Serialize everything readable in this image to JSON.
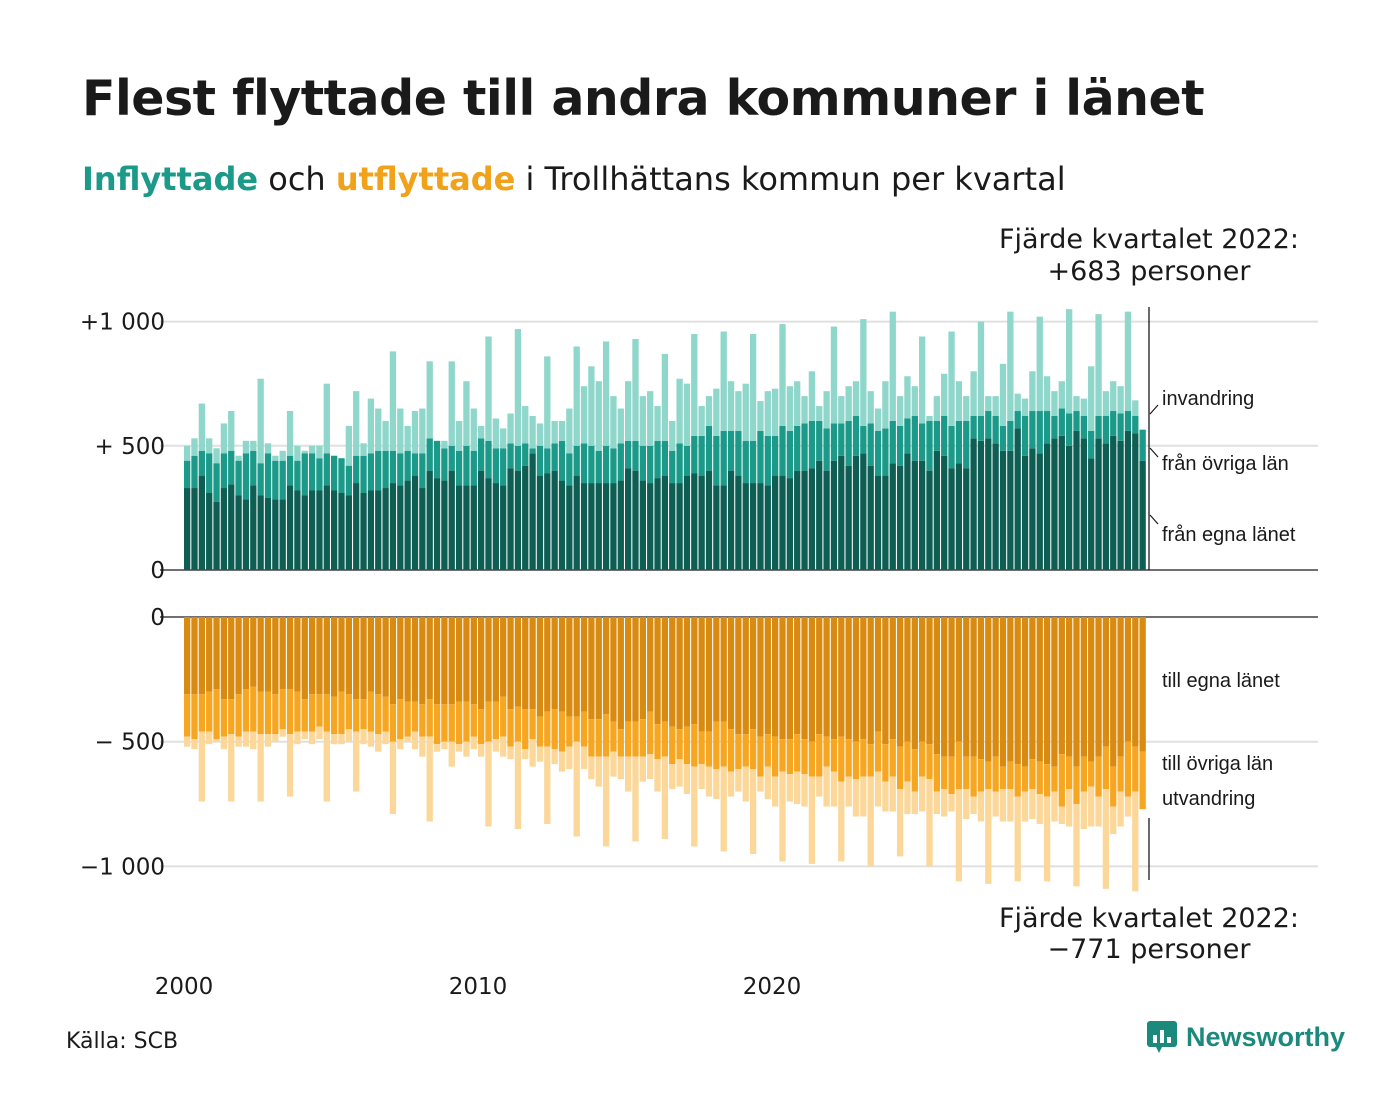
{
  "title": "Flest flyttade till andra kommuner i länet",
  "subtitle": {
    "part_in": "Inflyttade",
    "part_mid": " och ",
    "part_out": "utflyttade",
    "part_end": " i Trollhättans kommun per kvartal"
  },
  "source": "Källa: SCB",
  "brand": "Newsworthy",
  "colors": {
    "in_own": "#0e5e54",
    "in_other": "#1b9a8a",
    "in_immigration": "#8fd6cb",
    "out_own": "#d98a10",
    "out_other": "#f7a622",
    "out_emigration": "#fbd79a",
    "title_in": "#1b9a8a",
    "title_out": "#f0a21a"
  },
  "chart_data": {
    "type": "bar",
    "x_start": "2000 Q1",
    "x_end": "2022 Q4",
    "x_ticks": [
      "2000",
      "2010",
      "2020"
    ],
    "top_ticks": [
      {
        "value": 1000,
        "label": "+1 000"
      },
      {
        "value": 500,
        "label": "+  500"
      },
      {
        "value": 0,
        "label": "0"
      }
    ],
    "bottom_ticks": [
      {
        "value": 0,
        "label": "0"
      },
      {
        "value": -500,
        "label": "−  500"
      },
      {
        "value": -1000,
        "label": "−1 000"
      }
    ],
    "top_ylim": [
      0,
      1050
    ],
    "bottom_ylim": [
      -1000,
      0
    ],
    "series_labels": {
      "in_immigration": "invandring",
      "in_other": "från övriga län",
      "in_own": "från egna länet",
      "out_own": "till egna länet",
      "out_other": "till övriga län",
      "out_emigration": "utvandring"
    },
    "annotation_top": [
      "Fjärde kvartalet 2022:",
      "+683 personer"
    ],
    "annotation_bottom": [
      "Fjärde kvartalet 2022:",
      "−771 personer"
    ],
    "in_own": [
      330,
      330,
      380,
      310,
      275,
      330,
      345,
      300,
      285,
      340,
      300,
      290,
      285,
      285,
      340,
      320,
      300,
      320,
      320,
      340,
      320,
      310,
      300,
      350,
      310,
      320,
      320,
      330,
      350,
      340,
      360,
      380,
      330,
      400,
      370,
      360,
      400,
      340,
      340,
      340,
      400,
      370,
      350,
      340,
      410,
      400,
      420,
      470,
      380,
      390,
      400,
      360,
      340,
      380,
      350,
      350,
      350,
      350,
      350,
      360,
      410,
      400,
      360,
      350,
      370,
      380,
      350,
      350,
      380,
      390,
      380,
      400,
      340,
      340,
      400,
      380,
      350,
      350,
      350,
      340,
      380,
      380,
      370,
      400,
      400,
      410,
      440,
      400,
      440,
      460,
      420,
      460,
      470,
      420,
      380,
      380,
      430,
      420,
      470,
      440,
      440,
      400,
      480,
      460,
      410,
      430,
      410,
      530,
      520,
      530,
      510,
      480,
      480,
      570,
      460,
      490,
      470,
      510,
      530,
      540,
      500,
      560,
      530,
      450,
      530,
      510,
      540,
      520,
      560,
      550,
      440
    ],
    "in_total": [
      440,
      460,
      480,
      470,
      430,
      470,
      480,
      440,
      470,
      480,
      430,
      470,
      440,
      440,
      460,
      440,
      470,
      470,
      450,
      470,
      460,
      450,
      420,
      460,
      460,
      470,
      480,
      480,
      480,
      470,
      480,
      470,
      470,
      530,
      520,
      490,
      500,
      480,
      500,
      480,
      530,
      520,
      490,
      490,
      510,
      500,
      510,
      490,
      500,
      490,
      510,
      520,
      470,
      500,
      510,
      500,
      480,
      500,
      490,
      510,
      520,
      520,
      500,
      500,
      520,
      520,
      480,
      510,
      500,
      540,
      540,
      580,
      540,
      560,
      560,
      560,
      520,
      520,
      560,
      540,
      540,
      580,
      560,
      580,
      590,
      600,
      600,
      570,
      590,
      590,
      600,
      620,
      580,
      590,
      560,
      570,
      600,
      580,
      610,
      620,
      590,
      600,
      600,
      620,
      580,
      600,
      600,
      620,
      620,
      640,
      620,
      580,
      600,
      640,
      620,
      640,
      640,
      640,
      620,
      650,
      630,
      640,
      620,
      560,
      620,
      620,
      640,
      630,
      640,
      620,
      565
    ],
    "in_grand": [
      500,
      530,
      670,
      530,
      490,
      590,
      640,
      460,
      520,
      520,
      770,
      510,
      460,
      480,
      640,
      500,
      480,
      500,
      500,
      750,
      460,
      450,
      580,
      720,
      510,
      690,
      650,
      600,
      880,
      650,
      580,
      640,
      650,
      840,
      520,
      520,
      840,
      600,
      760,
      650,
      580,
      940,
      610,
      570,
      630,
      970,
      660,
      620,
      590,
      860,
      600,
      600,
      650,
      900,
      740,
      820,
      760,
      920,
      700,
      650,
      760,
      930,
      700,
      720,
      660,
      870,
      600,
      770,
      750,
      950,
      660,
      700,
      730,
      960,
      760,
      720,
      750,
      950,
      680,
      720,
      730,
      990,
      740,
      760,
      700,
      800,
      660,
      720,
      980,
      700,
      740,
      760,
      1010,
      720,
      650,
      760,
      1040,
      700,
      780,
      740,
      940,
      620,
      700,
      790,
      960,
      760,
      700,
      800,
      1000,
      700,
      700,
      830,
      1040,
      710,
      690,
      800,
      1020,
      780,
      720,
      760,
      1050,
      700,
      690,
      820,
      1030,
      720,
      760,
      740,
      1040,
      683
    ],
    "out_own": [
      310,
      310,
      310,
      300,
      290,
      330,
      330,
      310,
      290,
      280,
      300,
      300,
      310,
      290,
      290,
      300,
      330,
      310,
      310,
      310,
      320,
      300,
      310,
      330,
      330,
      300,
      310,
      320,
      350,
      330,
      340,
      340,
      350,
      330,
      350,
      350,
      350,
      340,
      340,
      350,
      370,
      340,
      340,
      320,
      370,
      360,
      370,
      370,
      400,
      380,
      370,
      380,
      400,
      400,
      380,
      410,
      410,
      390,
      420,
      450,
      420,
      420,
      410,
      380,
      430,
      420,
      440,
      450,
      440,
      430,
      460,
      460,
      420,
      420,
      450,
      470,
      470,
      450,
      480,
      470,
      480,
      490,
      490,
      470,
      490,
      500,
      470,
      480,
      490,
      480,
      490,
      500,
      490,
      510,
      460,
      510,
      490,
      520,
      500,
      530,
      500,
      510,
      550,
      560,
      560,
      500,
      560,
      560,
      570,
      580,
      560,
      600,
      580,
      590,
      600,
      570,
      580,
      590,
      600,
      550,
      560,
      600,
      560,
      580,
      560,
      520,
      600,
      560,
      500,
      520,
      540
    ],
    "out_total": [
      480,
      490,
      460,
      460,
      490,
      480,
      470,
      480,
      460,
      460,
      470,
      470,
      470,
      450,
      470,
      460,
      460,
      460,
      440,
      460,
      470,
      470,
      450,
      460,
      450,
      460,
      470,
      460,
      500,
      490,
      480,
      460,
      480,
      480,
      510,
      500,
      500,
      510,
      500,
      480,
      510,
      500,
      490,
      480,
      520,
      500,
      530,
      490,
      520,
      520,
      530,
      540,
      520,
      500,
      520,
      560,
      560,
      560,
      540,
      560,
      560,
      560,
      560,
      550,
      570,
      560,
      590,
      570,
      590,
      600,
      590,
      600,
      610,
      600,
      620,
      610,
      600,
      610,
      640,
      600,
      640,
      620,
      630,
      620,
      630,
      640,
      640,
      600,
      620,
      660,
      640,
      650,
      640,
      640,
      620,
      660,
      640,
      690,
      660,
      700,
      640,
      650,
      700,
      690,
      710,
      690,
      690,
      720,
      700,
      690,
      700,
      690,
      690,
      720,
      700,
      690,
      710,
      720,
      700,
      760,
      690,
      750,
      700,
      680,
      720,
      690,
      760,
      700,
      720,
      700,
      770
    ],
    "out_grand": [
      520,
      530,
      740,
      510,
      500,
      530,
      740,
      520,
      520,
      530,
      740,
      520,
      500,
      480,
      720,
      510,
      490,
      510,
      490,
      740,
      510,
      510,
      500,
      700,
      510,
      520,
      540,
      510,
      790,
      530,
      500,
      530,
      560,
      820,
      540,
      530,
      600,
      540,
      560,
      530,
      560,
      840,
      540,
      560,
      570,
      850,
      570,
      600,
      580,
      830,
      590,
      620,
      610,
      880,
      610,
      650,
      680,
      920,
      640,
      650,
      700,
      900,
      660,
      650,
      700,
      890,
      690,
      680,
      710,
      920,
      690,
      720,
      730,
      940,
      720,
      700,
      740,
      950,
      700,
      730,
      760,
      980,
      740,
      750,
      760,
      990,
      720,
      760,
      760,
      980,
      760,
      800,
      800,
      1000,
      760,
      780,
      780,
      960,
      790,
      790,
      780,
      1000,
      790,
      800,
      780,
      1060,
      810,
      790,
      820,
      1070,
      800,
      820,
      820,
      1060,
      820,
      810,
      830,
      1060,
      820,
      830,
      840,
      1080,
      850,
      840,
      840,
      1090,
      870,
      840,
      800,
      1100,
      771
    ]
  }
}
